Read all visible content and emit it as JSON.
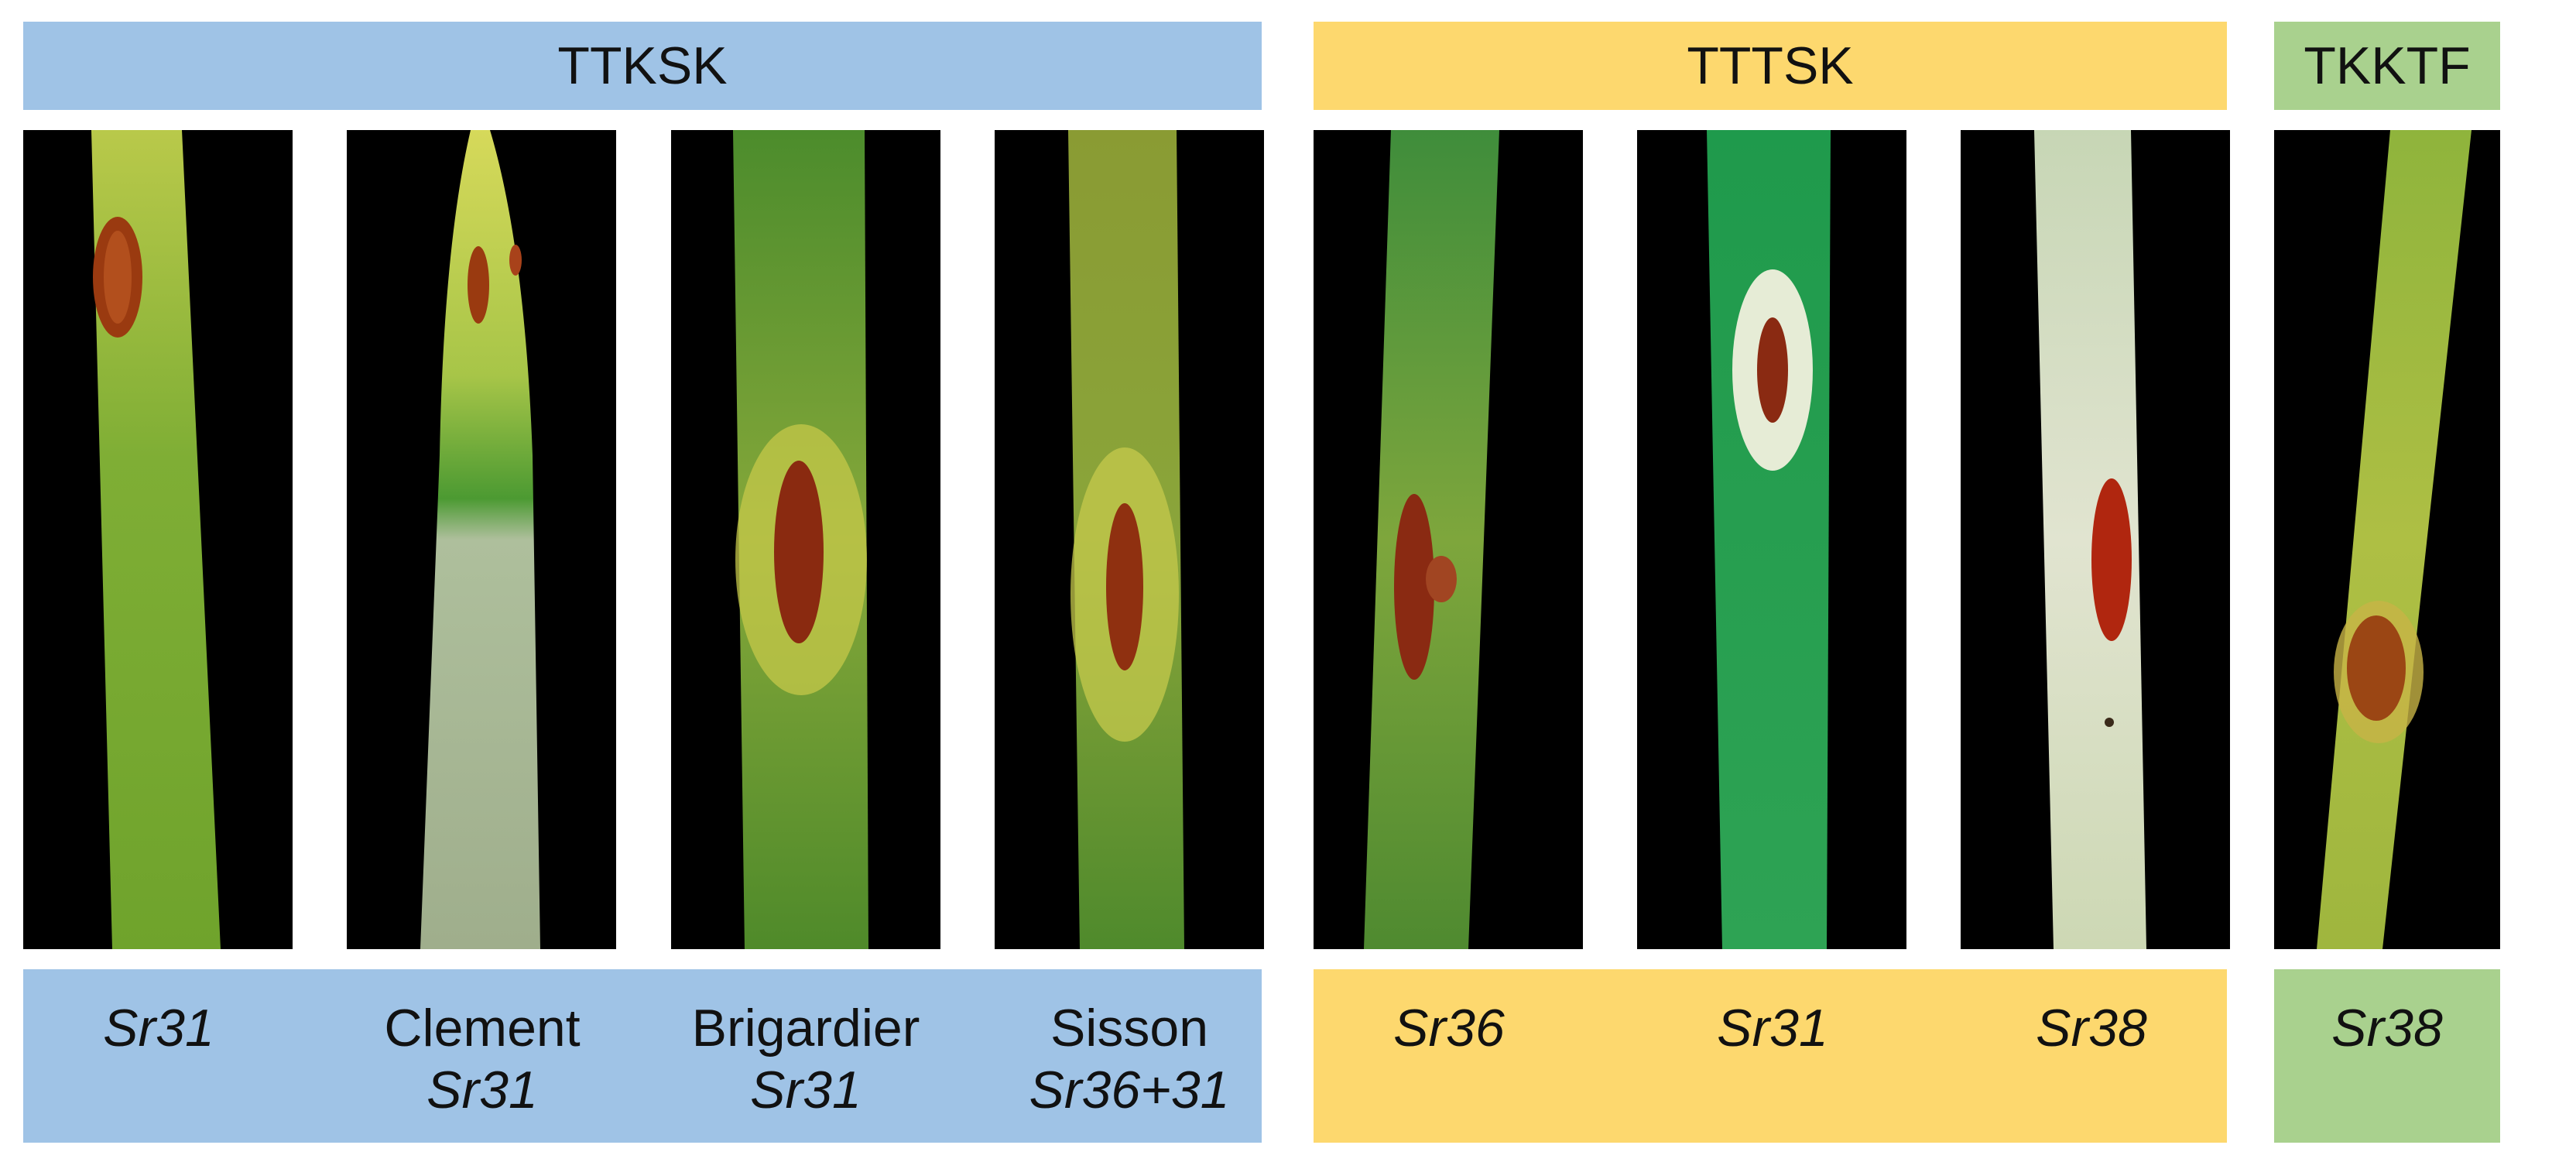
{
  "colors": {
    "blue": "#9fc3e6",
    "yellow": "#fdd86e",
    "green": "#a9d18e"
  },
  "groups": [
    {
      "name": "TTKSK",
      "color": "blue"
    },
    {
      "name": "TTTSK",
      "color": "yellow"
    },
    {
      "name": "TKKTF",
      "color": "green"
    }
  ],
  "panels": [
    {
      "group": "TTKSK",
      "line": "",
      "gene": "Sr31"
    },
    {
      "group": "TTKSK",
      "line": "Clement",
      "gene": "Sr31"
    },
    {
      "group": "TTKSK",
      "line": "Brigardier",
      "gene": "Sr31"
    },
    {
      "group": "TTKSK",
      "line": "Sisson",
      "gene": "Sr36+31"
    },
    {
      "group": "TTTSK",
      "line": "",
      "gene": "Sr36"
    },
    {
      "group": "TTTSK",
      "line": "",
      "gene": "Sr31"
    },
    {
      "group": "TTTSK",
      "line": "",
      "gene": "Sr38"
    },
    {
      "group": "TKKTF",
      "line": "",
      "gene": "Sr38"
    }
  ]
}
